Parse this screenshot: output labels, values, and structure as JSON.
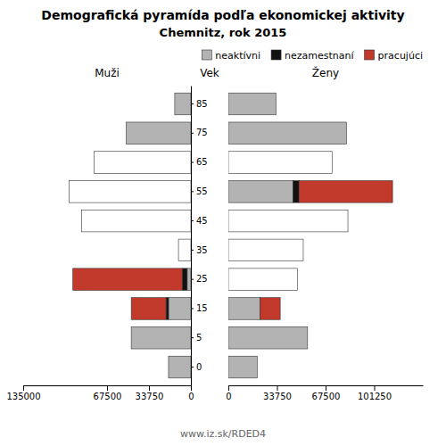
{
  "chart_data": [
    {
      "type": "bar",
      "orientation": "horizontal",
      "stacked": true,
      "grid": false,
      "title": "Demografická pyramída podľa ekonomickej aktivity",
      "subtitle": "Chemnitz, rok 2015",
      "xlabel": "Muži",
      "ylabel": "Vek",
      "annotations": [
        "www.iz.sk/RDED4"
      ],
      "categories": [
        "0",
        "5",
        "15",
        "25",
        "35",
        "45",
        "55",
        "65",
        "75",
        "85"
      ],
      "xlim": [
        0,
        135000
      ],
      "xticks": [
        0,
        33750,
        67500,
        135000
      ],
      "series": [
        {
          "color": "#ffffff",
          "values": [
            0,
            0,
            0,
            0,
            10000,
            88000,
            98000,
            78000,
            0,
            0
          ]
        },
        {
          "color": "#b3b3b3",
          "values": [
            18000,
            48000,
            18000,
            3000,
            0,
            0,
            0,
            0,
            52000,
            13000
          ]
        },
        {
          "color": "#111111",
          "values": [
            0,
            0,
            2000,
            4000,
            0,
            0,
            0,
            0,
            0,
            0
          ]
        },
        {
          "color": "#c0392b",
          "values": [
            0,
            0,
            28000,
            88000,
            0,
            0,
            0,
            0,
            0,
            0
          ]
        }
      ]
    },
    {
      "type": "bar",
      "orientation": "horizontal",
      "stacked": true,
      "grid": false,
      "xlabel": "Ženy",
      "legend": "upper right",
      "tick_labels": "x",
      "categories": [
        "0",
        "5",
        "15",
        "25",
        "35",
        "45",
        "55",
        "65",
        "75",
        "85"
      ],
      "xlim": [
        0,
        135000
      ],
      "xticks": [
        0,
        33750,
        67500,
        101250
      ],
      "series": [
        {
          "color": "#ffffff",
          "values": [
            0,
            0,
            0,
            48000,
            52000,
            83000,
            0,
            72000,
            0,
            0
          ]
        },
        {
          "name": "neaktívni",
          "color": "#b3b3b3",
          "values": [
            20000,
            55000,
            22000,
            0,
            0,
            0,
            45000,
            0,
            82000,
            33000
          ]
        },
        {
          "name": "nezamestnaní",
          "color": "#111111",
          "values": [
            0,
            0,
            0,
            0,
            0,
            0,
            4000,
            0,
            0,
            0
          ]
        },
        {
          "name": "pracujúci",
          "color": "#c0392b",
          "values": [
            0,
            0,
            14000,
            0,
            0,
            0,
            65000,
            0,
            0,
            0
          ]
        }
      ]
    }
  ]
}
